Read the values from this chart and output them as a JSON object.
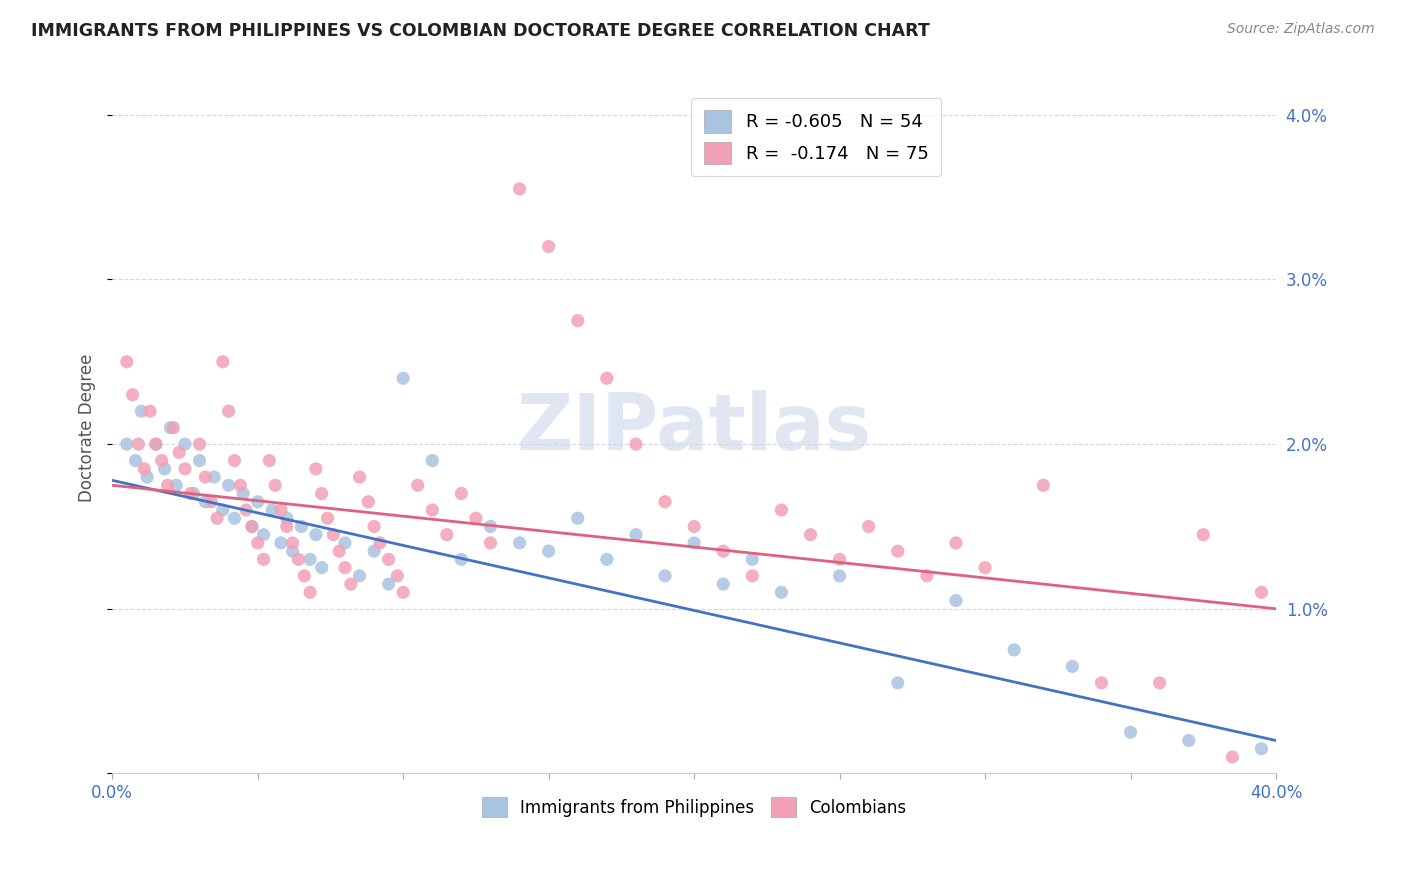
{
  "title": "IMMIGRANTS FROM PHILIPPINES VS COLOMBIAN DOCTORATE DEGREE CORRELATION CHART",
  "source": "Source: ZipAtlas.com",
  "ylabel": "Doctorate Degree",
  "legend_philippines": "R = -0.605   N = 54",
  "legend_colombians": "R =  -0.174   N = 75",
  "color_philippines": "#a8c4e0",
  "color_colombians": "#f2a0b5",
  "line_color_philippines": "#4472c4",
  "line_color_colombians": "#e06080",
  "watermark_color": "#cdd8ea",
  "title_color": "#222222",
  "source_color": "#888888",
  "axis_label_color": "#4472c4",
  "tick_color": "#4472c4",
  "grid_color": "#d0d8e8",
  "philippines_points": [
    [
      0.5,
      2.0
    ],
    [
      0.8,
      1.9
    ],
    [
      1.0,
      2.2
    ],
    [
      1.2,
      1.8
    ],
    [
      1.5,
      2.0
    ],
    [
      1.8,
      1.85
    ],
    [
      2.0,
      2.1
    ],
    [
      2.2,
      1.75
    ],
    [
      2.5,
      2.0
    ],
    [
      2.8,
      1.7
    ],
    [
      3.0,
      1.9
    ],
    [
      3.2,
      1.65
    ],
    [
      3.5,
      1.8
    ],
    [
      3.8,
      1.6
    ],
    [
      4.0,
      1.75
    ],
    [
      4.2,
      1.55
    ],
    [
      4.5,
      1.7
    ],
    [
      4.8,
      1.5
    ],
    [
      5.0,
      1.65
    ],
    [
      5.2,
      1.45
    ],
    [
      5.5,
      1.6
    ],
    [
      5.8,
      1.4
    ],
    [
      6.0,
      1.55
    ],
    [
      6.2,
      1.35
    ],
    [
      6.5,
      1.5
    ],
    [
      6.8,
      1.3
    ],
    [
      7.0,
      1.45
    ],
    [
      7.2,
      1.25
    ],
    [
      8.0,
      1.4
    ],
    [
      8.5,
      1.2
    ],
    [
      9.0,
      1.35
    ],
    [
      9.5,
      1.15
    ],
    [
      10.0,
      2.4
    ],
    [
      11.0,
      1.9
    ],
    [
      12.0,
      1.3
    ],
    [
      13.0,
      1.5
    ],
    [
      14.0,
      1.4
    ],
    [
      15.0,
      1.35
    ],
    [
      16.0,
      1.55
    ],
    [
      17.0,
      1.3
    ],
    [
      18.0,
      1.45
    ],
    [
      19.0,
      1.2
    ],
    [
      20.0,
      1.4
    ],
    [
      21.0,
      1.15
    ],
    [
      22.0,
      1.3
    ],
    [
      23.0,
      1.1
    ],
    [
      25.0,
      1.2
    ],
    [
      27.0,
      0.55
    ],
    [
      29.0,
      1.05
    ],
    [
      31.0,
      0.75
    ],
    [
      33.0,
      0.65
    ],
    [
      35.0,
      0.25
    ],
    [
      37.0,
      0.2
    ],
    [
      39.5,
      0.15
    ]
  ],
  "colombians_points": [
    [
      0.5,
      2.5
    ],
    [
      0.7,
      2.3
    ],
    [
      0.9,
      2.0
    ],
    [
      1.1,
      1.85
    ],
    [
      1.3,
      2.2
    ],
    [
      1.5,
      2.0
    ],
    [
      1.7,
      1.9
    ],
    [
      1.9,
      1.75
    ],
    [
      2.1,
      2.1
    ],
    [
      2.3,
      1.95
    ],
    [
      2.5,
      1.85
    ],
    [
      2.7,
      1.7
    ],
    [
      3.0,
      2.0
    ],
    [
      3.2,
      1.8
    ],
    [
      3.4,
      1.65
    ],
    [
      3.6,
      1.55
    ],
    [
      3.8,
      2.5
    ],
    [
      4.0,
      2.2
    ],
    [
      4.2,
      1.9
    ],
    [
      4.4,
      1.75
    ],
    [
      4.6,
      1.6
    ],
    [
      4.8,
      1.5
    ],
    [
      5.0,
      1.4
    ],
    [
      5.2,
      1.3
    ],
    [
      5.4,
      1.9
    ],
    [
      5.6,
      1.75
    ],
    [
      5.8,
      1.6
    ],
    [
      6.0,
      1.5
    ],
    [
      6.2,
      1.4
    ],
    [
      6.4,
      1.3
    ],
    [
      6.6,
      1.2
    ],
    [
      6.8,
      1.1
    ],
    [
      7.0,
      1.85
    ],
    [
      7.2,
      1.7
    ],
    [
      7.4,
      1.55
    ],
    [
      7.6,
      1.45
    ],
    [
      7.8,
      1.35
    ],
    [
      8.0,
      1.25
    ],
    [
      8.2,
      1.15
    ],
    [
      8.5,
      1.8
    ],
    [
      8.8,
      1.65
    ],
    [
      9.0,
      1.5
    ],
    [
      9.2,
      1.4
    ],
    [
      9.5,
      1.3
    ],
    [
      9.8,
      1.2
    ],
    [
      10.0,
      1.1
    ],
    [
      10.5,
      1.75
    ],
    [
      11.0,
      1.6
    ],
    [
      11.5,
      1.45
    ],
    [
      12.0,
      1.7
    ],
    [
      12.5,
      1.55
    ],
    [
      13.0,
      1.4
    ],
    [
      14.0,
      3.55
    ],
    [
      15.0,
      3.2
    ],
    [
      16.0,
      2.75
    ],
    [
      17.0,
      2.4
    ],
    [
      18.0,
      2.0
    ],
    [
      19.0,
      1.65
    ],
    [
      20.0,
      1.5
    ],
    [
      21.0,
      1.35
    ],
    [
      22.0,
      1.2
    ],
    [
      23.0,
      1.6
    ],
    [
      24.0,
      1.45
    ],
    [
      25.0,
      1.3
    ],
    [
      26.0,
      1.5
    ],
    [
      27.0,
      1.35
    ],
    [
      28.0,
      1.2
    ],
    [
      29.0,
      1.4
    ],
    [
      30.0,
      1.25
    ],
    [
      32.0,
      1.75
    ],
    [
      34.0,
      0.55
    ],
    [
      36.0,
      0.55
    ],
    [
      37.5,
      1.45
    ],
    [
      38.5,
      0.1
    ],
    [
      39.5,
      1.1
    ]
  ],
  "philippines_line": [
    [
      0,
      1.78
    ],
    [
      40,
      0.2
    ]
  ],
  "colombians_line": [
    [
      0,
      1.75
    ],
    [
      40,
      1.0
    ]
  ],
  "xmin": 0.0,
  "xmax": 40.0,
  "ymin": 0.0,
  "ymax": 4.2,
  "ytick_positions": [
    0.0,
    1.0,
    2.0,
    3.0,
    4.0
  ],
  "ytick_labels": [
    "",
    "1.0%",
    "2.0%",
    "3.0%",
    "4.0%"
  ],
  "xtick_show": [
    0.0,
    40.0
  ],
  "marker_size": 90,
  "marker_alpha": 0.85
}
